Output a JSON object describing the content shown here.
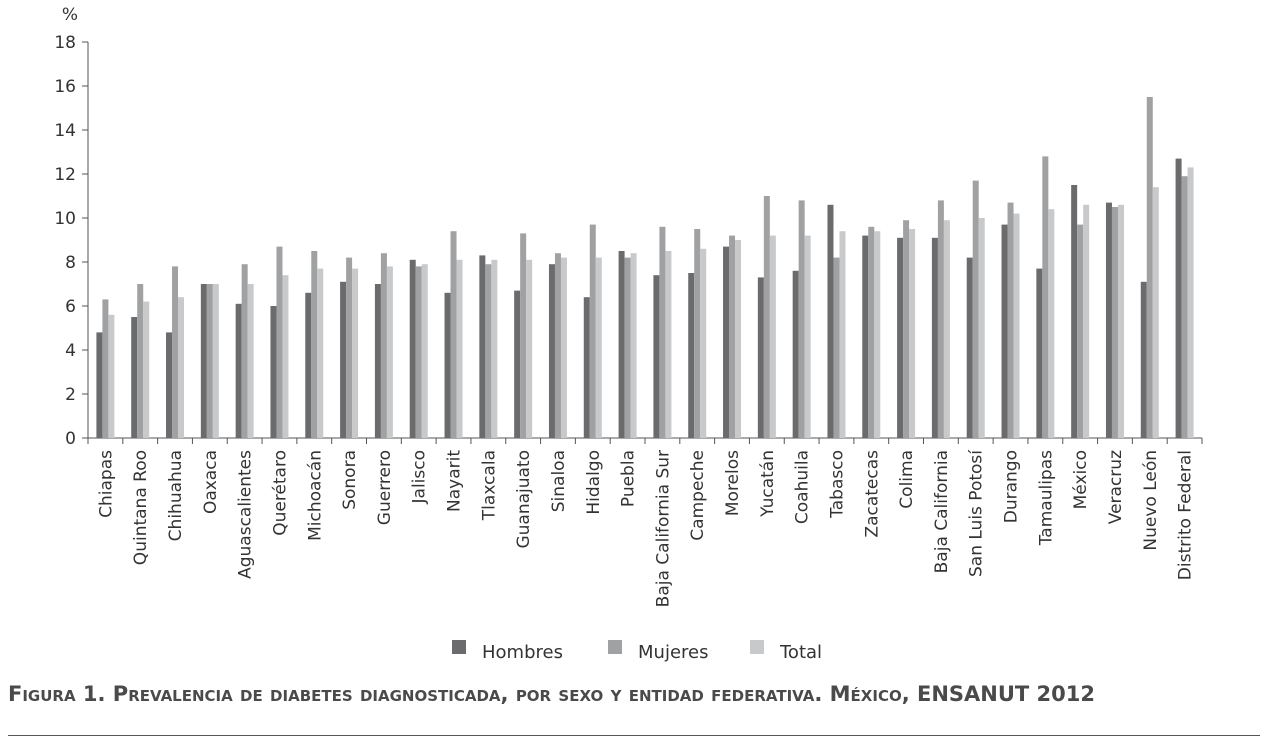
{
  "figure": {
    "caption_label": "Figura 1.",
    "caption_text": "Prevalencia de diabetes diagnosticada, por sexo y entidad federativa. México,",
    "caption_tail": "ENSANUT 2012"
  },
  "chart_data": {
    "type": "bar",
    "ylabel": "%",
    "ylim": [
      0,
      18
    ],
    "yticks": [
      "0",
      "2",
      "4",
      "6",
      "8",
      "10",
      "12",
      "14",
      "16",
      "18"
    ],
    "grid": false,
    "legend_position": "bottom",
    "categories": [
      "Chiapas",
      "Quintana Roo",
      "Chihuahua",
      "Oaxaca",
      "Aguascalientes",
      "Querétaro",
      "Michoacán",
      "Sonora",
      "Guerrero",
      "Jalisco",
      "Nayarit",
      "Tlaxcala",
      "Guanajuato",
      "Sinaloa",
      "Hidalgo",
      "Puebla",
      "Baja California Sur",
      "Campeche",
      "Morelos",
      "Yucatán",
      "Coahuila",
      "Tabasco",
      "Zacatecas",
      "Colima",
      "Baja California",
      "San Luis Potosí",
      "Durango",
      "Tamaulipas",
      "México",
      "Veracruz",
      "Nuevo León",
      "Distrito Federal"
    ],
    "series": [
      {
        "name": "Hombres",
        "color": "#6b6b6d",
        "values": [
          4.8,
          5.5,
          4.8,
          7.0,
          6.1,
          6.0,
          6.6,
          7.1,
          7.0,
          8.1,
          6.6,
          8.3,
          6.7,
          7.9,
          6.4,
          8.5,
          7.4,
          7.5,
          8.7,
          7.3,
          7.6,
          10.6,
          9.2,
          9.1,
          9.1,
          8.2,
          9.7,
          7.7,
          11.5,
          10.7,
          7.1,
          12.7
        ]
      },
      {
        "name": "Mujeres",
        "color": "#a0a1a3",
        "values": [
          6.3,
          7.0,
          7.8,
          7.0,
          7.9,
          8.7,
          8.5,
          8.2,
          8.4,
          7.8,
          9.4,
          7.9,
          9.3,
          8.4,
          9.7,
          8.2,
          9.6,
          9.5,
          9.2,
          11.0,
          10.8,
          8.2,
          9.6,
          9.9,
          10.8,
          11.7,
          10.7,
          12.8,
          9.7,
          10.5,
          15.5,
          11.9
        ]
      },
      {
        "name": "Total",
        "color": "#c8c9cb",
        "values": [
          5.6,
          6.2,
          6.4,
          7.0,
          7.0,
          7.4,
          7.7,
          7.7,
          7.8,
          7.9,
          8.1,
          8.1,
          8.1,
          8.2,
          8.2,
          8.4,
          8.5,
          8.6,
          9.0,
          9.2,
          9.2,
          9.4,
          9.4,
          9.5,
          9.9,
          10.0,
          10.2,
          10.4,
          10.6,
          10.6,
          11.4,
          12.3
        ]
      }
    ]
  }
}
